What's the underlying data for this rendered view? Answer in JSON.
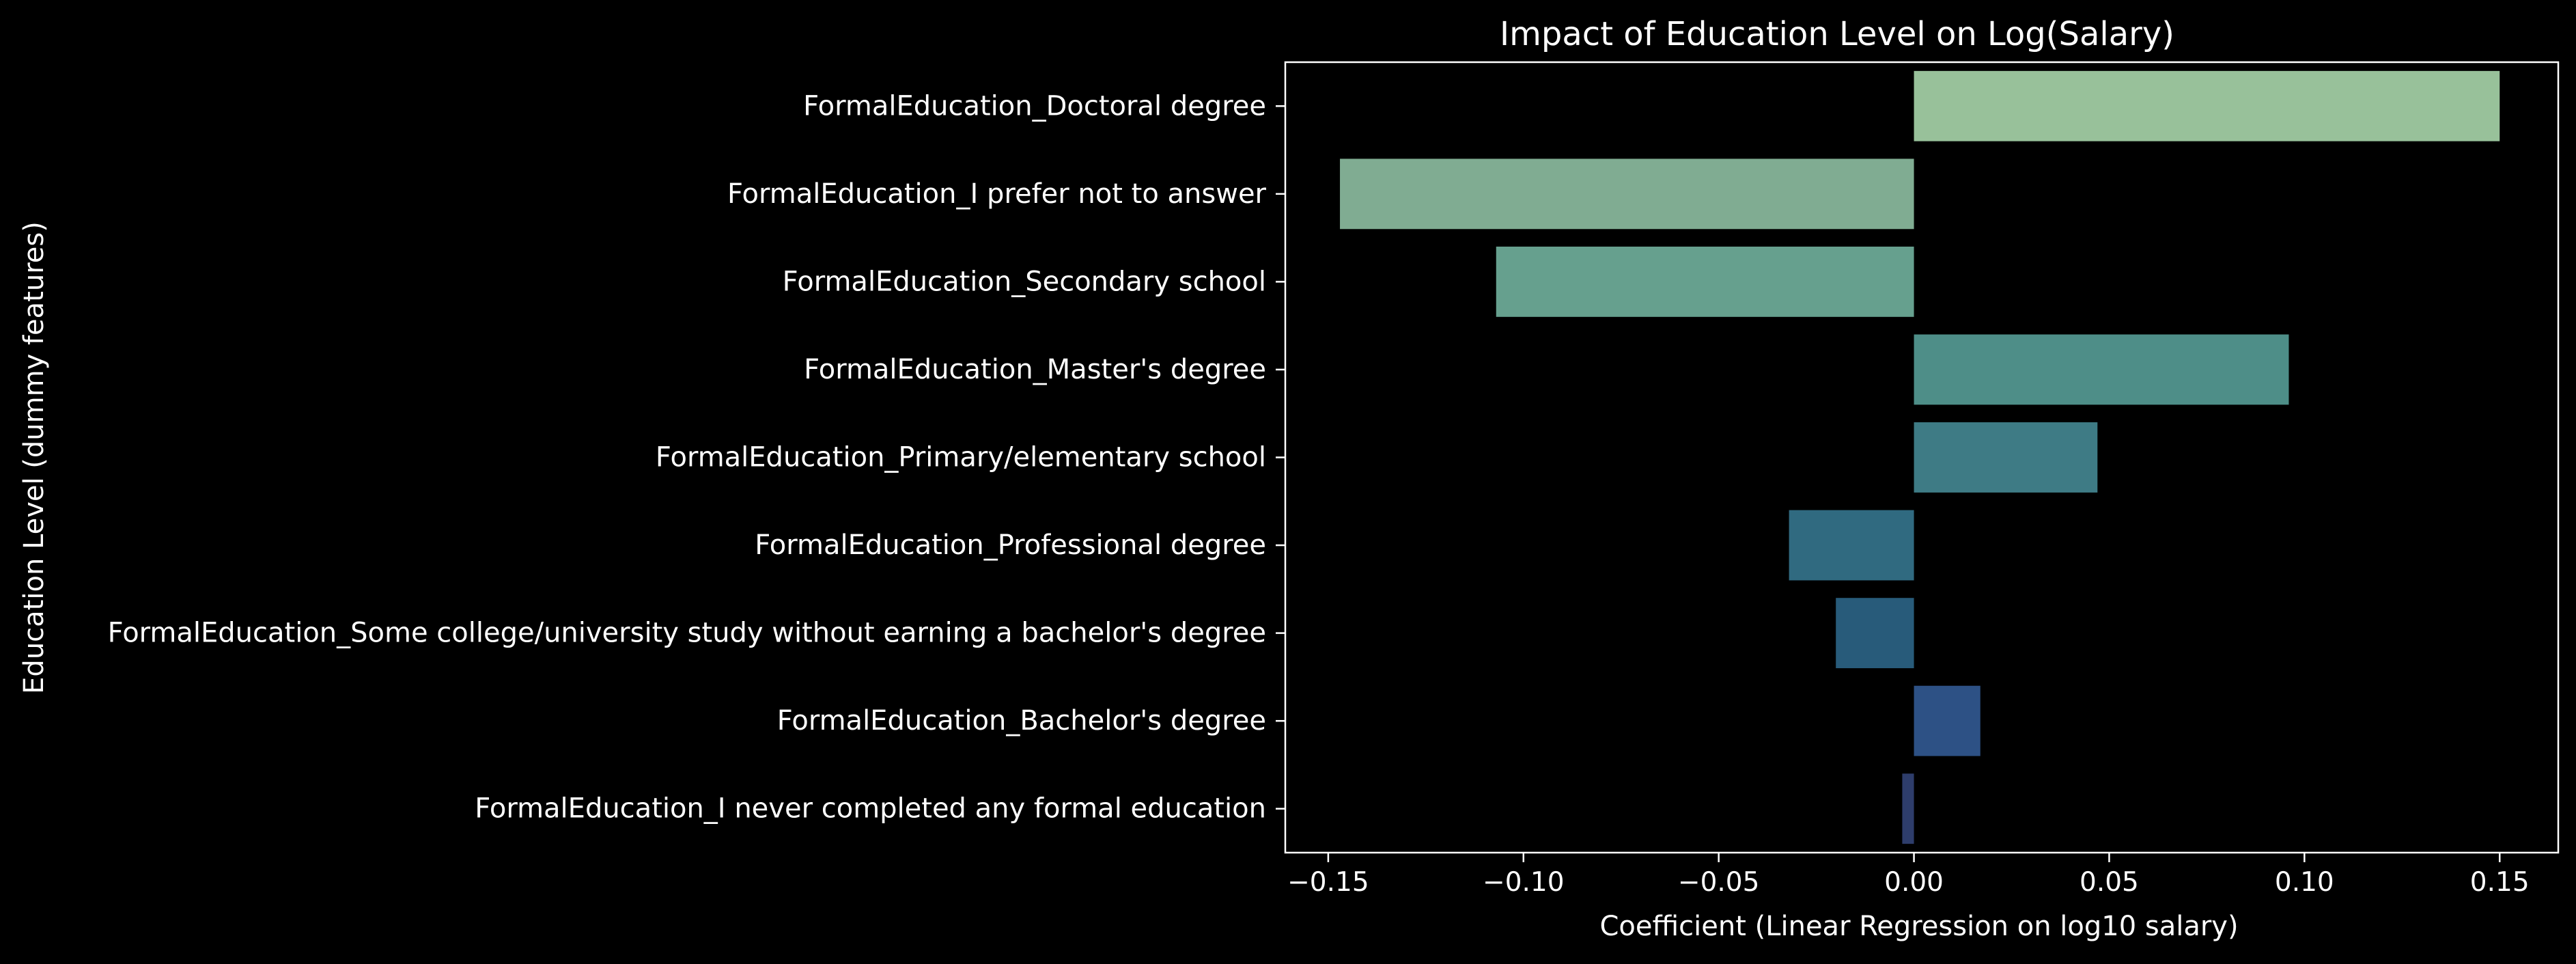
{
  "chart_data": {
    "type": "bar",
    "orientation": "horizontal",
    "title": "Impact of Education Level on Log(Salary)",
    "xlabel": "Coefficient (Linear Regression on log10 salary)",
    "ylabel": "Education Level (dummy features)",
    "xlim": [
      -0.161,
      0.165
    ],
    "xticks": [
      -0.15,
      -0.1,
      -0.05,
      0.0,
      0.05,
      0.1,
      0.15
    ],
    "xtick_labels": [
      "−0.15",
      "−0.10",
      "−0.05",
      "0.00",
      "0.05",
      "0.10",
      "0.15"
    ],
    "grid": false,
    "legend": "none",
    "categories": [
      "FormalEducation_Doctoral degree",
      "FormalEducation_I prefer not to answer",
      "FormalEducation_Secondary school",
      "FormalEducation_Master's degree",
      "FormalEducation_Primary/elementary school",
      "FormalEducation_Professional degree",
      "FormalEducation_Some college/university study without earning a bachelor's degree",
      "FormalEducation_Bachelor's degree",
      "FormalEducation_I never completed any formal education"
    ],
    "values": [
      0.15,
      -0.147,
      -0.107,
      0.096,
      0.047,
      -0.032,
      -0.02,
      0.017,
      -0.003
    ],
    "colors": [
      "#98c19a",
      "#80ac92",
      "#66a08e",
      "#4e8e88",
      "#3e7b85",
      "#306a80",
      "#285b7a",
      "#2d5185",
      "#2e3d6b"
    ],
    "background": "#000000",
    "foreground": "#ffffff"
  }
}
